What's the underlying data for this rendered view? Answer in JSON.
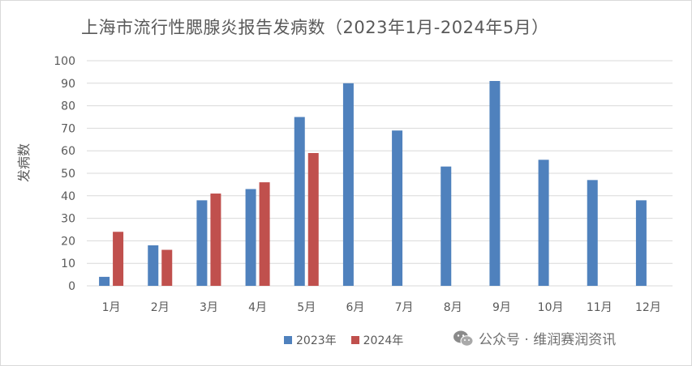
{
  "chart_data": {
    "type": "bar",
    "title": "上海市流行性腮腺炎报告发病数（2023年1月-2024年5月）",
    "xlabel": "",
    "ylabel": "发病数",
    "categories": [
      "1月",
      "2月",
      "3月",
      "4月",
      "5月",
      "6月",
      "7月",
      "8月",
      "9月",
      "10月",
      "11月",
      "12月"
    ],
    "series": [
      {
        "name": "2023年",
        "color": "#4f81bd",
        "values": [
          4,
          18,
          38,
          43,
          75,
          90,
          69,
          53,
          91,
          56,
          47,
          38
        ]
      },
      {
        "name": "2024年",
        "color": "#c0504d",
        "values": [
          24,
          16,
          41,
          46,
          59,
          null,
          null,
          null,
          null,
          null,
          null,
          null
        ]
      }
    ],
    "ylim": [
      0,
      100
    ],
    "yticks": [
      0,
      10,
      20,
      30,
      40,
      50,
      60,
      70,
      80,
      90,
      100
    ],
    "grid": true,
    "legend": "bottom"
  },
  "watermark": {
    "icon": "wechat-icon",
    "text": "公众号 · 维润赛润资讯"
  }
}
